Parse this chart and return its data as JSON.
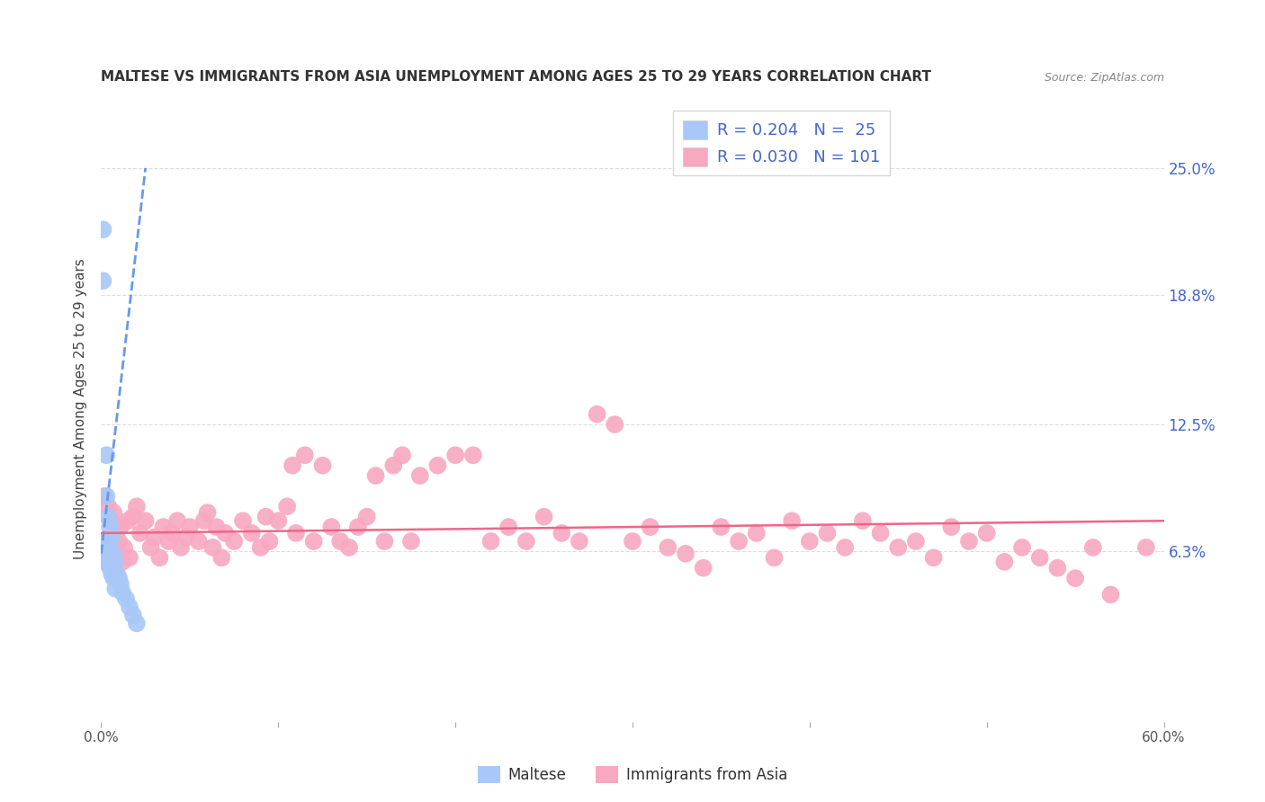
{
  "title": "MALTESE VS IMMIGRANTS FROM ASIA UNEMPLOYMENT AMONG AGES 25 TO 29 YEARS CORRELATION CHART",
  "source": "Source: ZipAtlas.com",
  "ylabel": "Unemployment Among Ages 25 to 29 years",
  "xlim": [
    0.0,
    0.6
  ],
  "ylim": [
    -0.02,
    0.285
  ],
  "ytick_positions": [
    0.063,
    0.125,
    0.188,
    0.25
  ],
  "ytick_labels": [
    "6.3%",
    "12.5%",
    "18.8%",
    "25.0%"
  ],
  "maltese_R": 0.204,
  "maltese_N": 25,
  "asia_R": 0.03,
  "asia_N": 101,
  "maltese_color": "#a8c8f8",
  "asia_color": "#f8a8c0",
  "trendline_maltese_color": "#6699ee",
  "trendline_asia_color": "#ee6688",
  "legend_text_color": "#4466cc",
  "background_color": "#ffffff",
  "grid_color": "#dddddd",
  "maltese_x": [
    0.001,
    0.001,
    0.002,
    0.002,
    0.003,
    0.003,
    0.003,
    0.004,
    0.004,
    0.005,
    0.005,
    0.006,
    0.006,
    0.007,
    0.007,
    0.008,
    0.008,
    0.009,
    0.01,
    0.011,
    0.012,
    0.014,
    0.016,
    0.018,
    0.02
  ],
  "maltese_y": [
    0.22,
    0.195,
    0.068,
    0.058,
    0.11,
    0.09,
    0.062,
    0.08,
    0.065,
    0.075,
    0.055,
    0.07,
    0.052,
    0.062,
    0.05,
    0.058,
    0.045,
    0.052,
    0.05,
    0.047,
    0.043,
    0.04,
    0.036,
    0.032,
    0.028
  ],
  "asia_x": [
    0.002,
    0.003,
    0.004,
    0.005,
    0.005,
    0.006,
    0.007,
    0.007,
    0.008,
    0.009,
    0.01,
    0.011,
    0.012,
    0.013,
    0.015,
    0.016,
    0.018,
    0.02,
    0.022,
    0.025,
    0.028,
    0.03,
    0.033,
    0.035,
    0.038,
    0.04,
    0.043,
    0.045,
    0.048,
    0.05,
    0.055,
    0.058,
    0.06,
    0.063,
    0.065,
    0.068,
    0.07,
    0.075,
    0.08,
    0.085,
    0.09,
    0.093,
    0.095,
    0.1,
    0.105,
    0.108,
    0.11,
    0.115,
    0.12,
    0.125,
    0.13,
    0.135,
    0.14,
    0.145,
    0.15,
    0.155,
    0.16,
    0.165,
    0.17,
    0.175,
    0.18,
    0.19,
    0.2,
    0.21,
    0.22,
    0.23,
    0.24,
    0.25,
    0.26,
    0.27,
    0.28,
    0.29,
    0.3,
    0.31,
    0.32,
    0.33,
    0.34,
    0.35,
    0.36,
    0.37,
    0.38,
    0.39,
    0.4,
    0.41,
    0.42,
    0.43,
    0.44,
    0.45,
    0.46,
    0.47,
    0.48,
    0.49,
    0.5,
    0.51,
    0.52,
    0.53,
    0.54,
    0.55,
    0.56,
    0.57,
    0.59
  ],
  "asia_y": [
    0.09,
    0.068,
    0.085,
    0.078,
    0.06,
    0.07,
    0.082,
    0.055,
    0.072,
    0.062,
    0.068,
    0.075,
    0.058,
    0.065,
    0.078,
    0.06,
    0.08,
    0.085,
    0.072,
    0.078,
    0.065,
    0.07,
    0.06,
    0.075,
    0.068,
    0.072,
    0.078,
    0.065,
    0.07,
    0.075,
    0.068,
    0.078,
    0.082,
    0.065,
    0.075,
    0.06,
    0.072,
    0.068,
    0.078,
    0.072,
    0.065,
    0.08,
    0.068,
    0.078,
    0.085,
    0.105,
    0.072,
    0.11,
    0.068,
    0.105,
    0.075,
    0.068,
    0.065,
    0.075,
    0.08,
    0.1,
    0.068,
    0.105,
    0.11,
    0.068,
    0.1,
    0.105,
    0.11,
    0.11,
    0.068,
    0.075,
    0.068,
    0.08,
    0.072,
    0.068,
    0.13,
    0.125,
    0.068,
    0.075,
    0.065,
    0.062,
    0.055,
    0.075,
    0.068,
    0.072,
    0.06,
    0.078,
    0.068,
    0.072,
    0.065,
    0.078,
    0.072,
    0.065,
    0.068,
    0.06,
    0.075,
    0.068,
    0.072,
    0.058,
    0.065,
    0.06,
    0.055,
    0.05,
    0.065,
    0.042,
    0.065
  ]
}
